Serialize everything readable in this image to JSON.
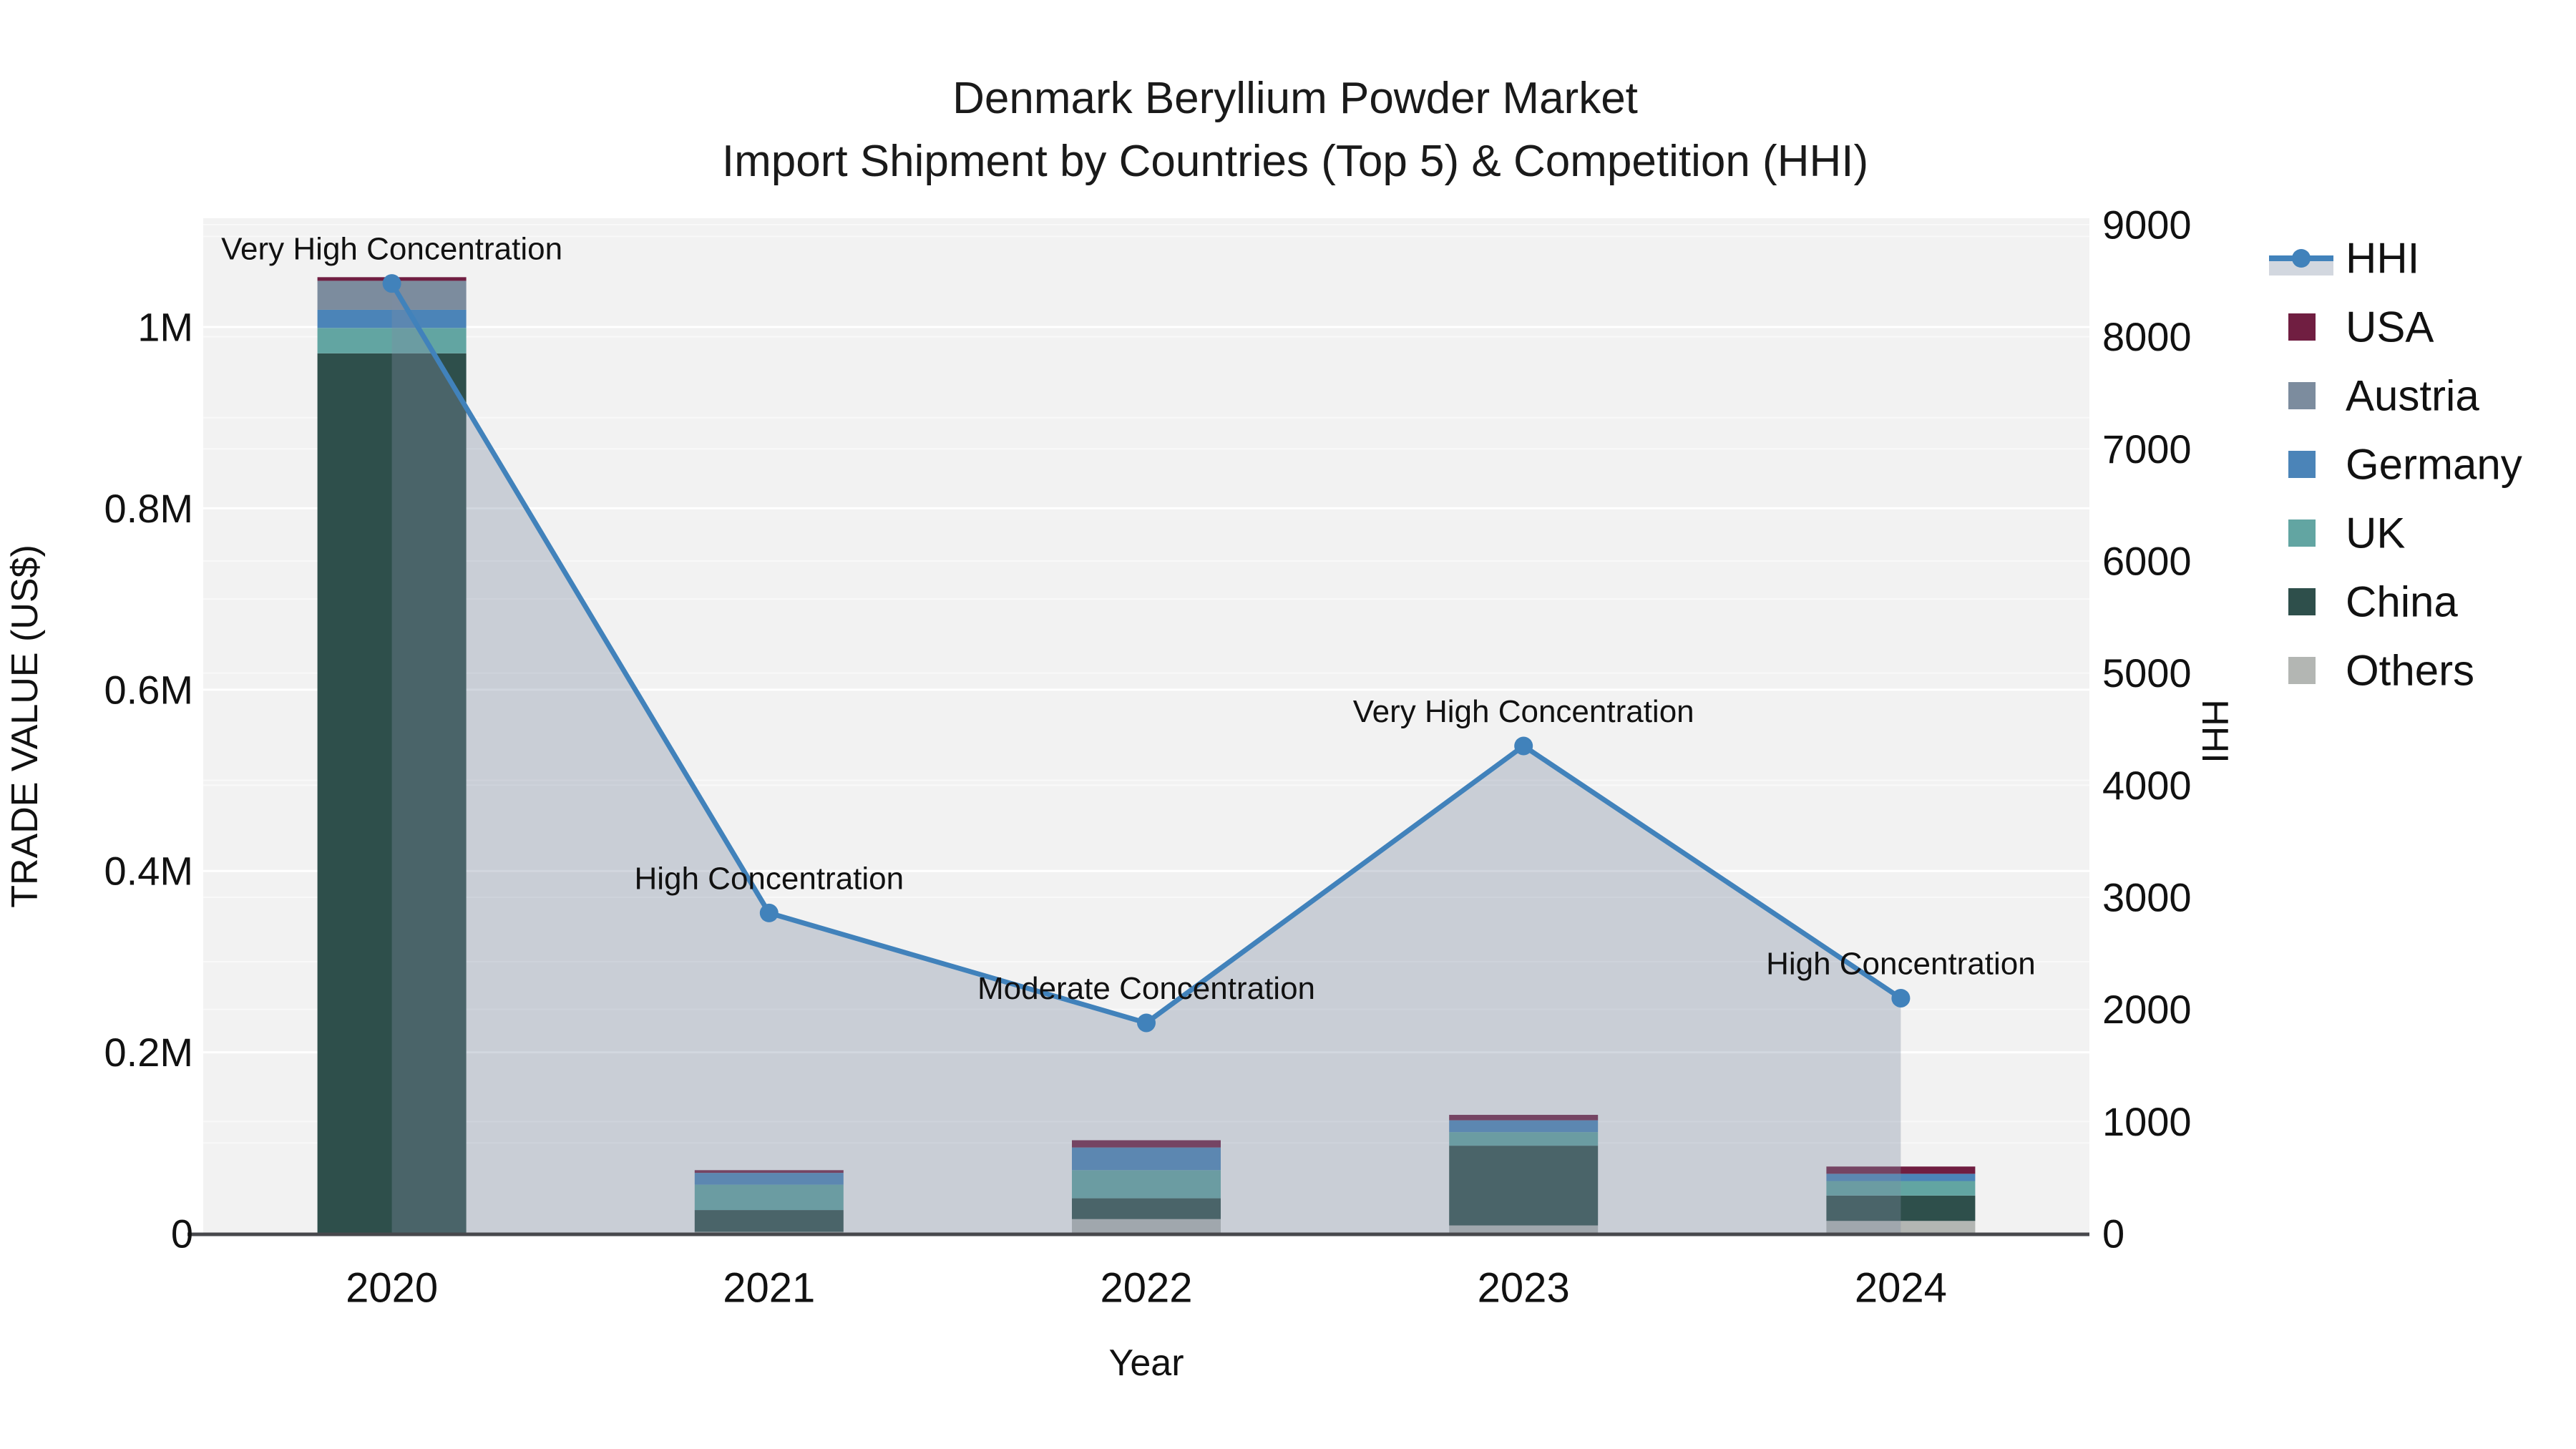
{
  "title": {
    "line1": "Denmark Beryllium Powder Market",
    "line2": "Import Shipment by Countries (Top 5) & Competition (HHI)"
  },
  "axes": {
    "x": {
      "title": "Year",
      "categories": [
        "2020",
        "2021",
        "2022",
        "2023",
        "2024"
      ]
    },
    "y_left": {
      "title": "TRADE VALUE (US$)",
      "tick_labels": [
        "0",
        "0.2M",
        "0.4M",
        "0.6M",
        "0.8M",
        "1M"
      ],
      "tick_values": [
        0,
        200000,
        400000,
        600000,
        800000,
        1000000
      ],
      "range": [
        0,
        1120000
      ]
    },
    "y_right": {
      "title": "HHI",
      "tick_labels": [
        "0",
        "1000",
        "2000",
        "3000",
        "4000",
        "5000",
        "6000",
        "7000",
        "8000",
        "9000"
      ],
      "tick_values": [
        0,
        1000,
        2000,
        3000,
        4000,
        5000,
        6000,
        7000,
        8000,
        9000
      ],
      "range": [
        0,
        9057
      ]
    }
  },
  "legend": {
    "position": "right",
    "items": [
      "HHI",
      "USA",
      "Austria",
      "Germany",
      "UK",
      "China",
      "Others"
    ]
  },
  "chart_data": {
    "type": [
      "bar",
      "line"
    ],
    "bar_mode": "stacked",
    "categories": [
      "2020",
      "2021",
      "2022",
      "2023",
      "2024"
    ],
    "bar_value_unit": "US$",
    "series": [
      {
        "name": "USA",
        "type": "bar",
        "color": "#701e41",
        "values": [
          4000,
          3000,
          8000,
          6000,
          8000
        ]
      },
      {
        "name": "Austria",
        "type": "bar",
        "color": "#7c8c9e",
        "values": [
          32000,
          0,
          0,
          0,
          0
        ]
      },
      {
        "name": "Germany",
        "type": "bar",
        "color": "#4b84b8",
        "values": [
          20000,
          13000,
          25000,
          13000,
          8000
        ]
      },
      {
        "name": "UK",
        "type": "bar",
        "color": "#62a5a2",
        "values": [
          28000,
          28000,
          31000,
          15000,
          16000
        ]
      },
      {
        "name": "China",
        "type": "bar",
        "color": "#2e4f4b",
        "values": [
          971000,
          24000,
          23000,
          88000,
          28000
        ]
      },
      {
        "name": "Others",
        "type": "bar",
        "color": "#b3b6b3",
        "values": [
          0,
          2000,
          16000,
          9000,
          14000
        ]
      }
    ],
    "line_series": {
      "name": "HHI",
      "axis": "right",
      "color": "#4182bb",
      "area_fill": "rgba(125,140,163,0.35)",
      "values": [
        8475,
        2860,
        1880,
        4350,
        2100
      ]
    },
    "annotations": [
      {
        "year": "2020",
        "text": "Very High Concentration"
      },
      {
        "year": "2021",
        "text": "High Concentration"
      },
      {
        "year": "2022",
        "text": "Moderate Concentration"
      },
      {
        "year": "2023",
        "text": "Very High Concentration"
      },
      {
        "year": "2024",
        "text": "High Concentration"
      }
    ],
    "grid": true,
    "plot_background": "#f2f2f2",
    "grid_color": "#ffffff",
    "axis_line_color": "#47484c"
  }
}
